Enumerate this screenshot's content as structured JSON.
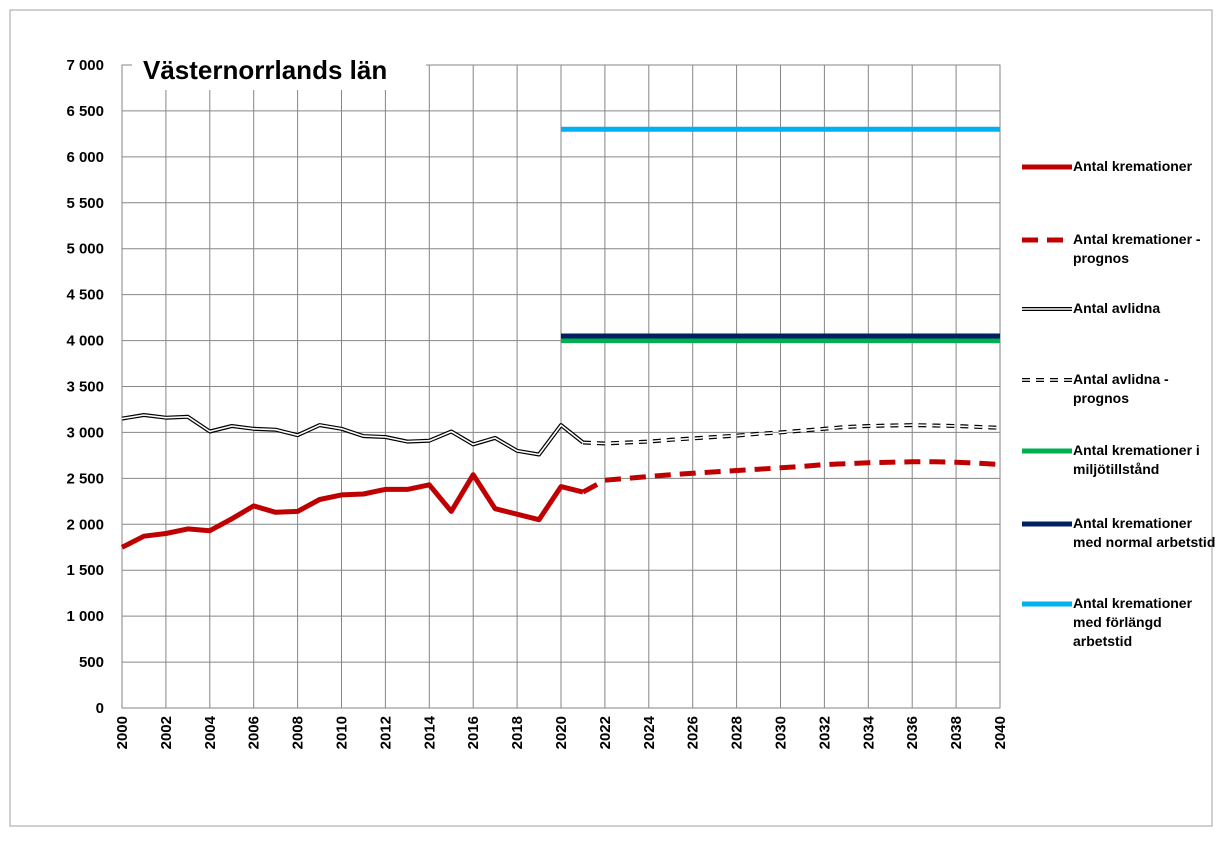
{
  "chart_data": {
    "type": "line",
    "title": "Västernorrlands län",
    "x": [
      2000,
      2001,
      2002,
      2003,
      2004,
      2005,
      2006,
      2007,
      2008,
      2009,
      2010,
      2011,
      2012,
      2013,
      2014,
      2015,
      2016,
      2017,
      2018,
      2019,
      2020,
      2021,
      2022,
      2023,
      2024,
      2025,
      2026,
      2027,
      2028,
      2029,
      2030,
      2031,
      2032,
      2033,
      2034,
      2035,
      2036,
      2037,
      2038,
      2039,
      2040
    ],
    "xlim": [
      2000,
      2040
    ],
    "xticks": [
      2000,
      2002,
      2004,
      2006,
      2008,
      2010,
      2012,
      2014,
      2016,
      2018,
      2020,
      2022,
      2024,
      2026,
      2028,
      2030,
      2032,
      2034,
      2036,
      2038,
      2040
    ],
    "ylim": [
      0,
      7000
    ],
    "yticks": [
      0,
      500,
      {
        "value": 1000,
        "label": "1 000"
      },
      {
        "value": 1500,
        "label": "1 500"
      },
      {
        "value": 2000,
        "label": "2 000"
      },
      {
        "value": 2500,
        "label": "2 500"
      },
      {
        "value": 3000,
        "label": "3 000"
      },
      {
        "value": 3500,
        "label": "3 500"
      },
      {
        "value": 4000,
        "label": "4 000"
      },
      {
        "value": 4500,
        "label": "4 500"
      },
      {
        "value": 5000,
        "label": "5 000"
      },
      {
        "value": 5500,
        "label": "5 500"
      },
      {
        "value": 6000,
        "label": "6 000"
      },
      {
        "value": 6500,
        "label": "6 500"
      },
      {
        "value": 7000,
        "label": "7 000"
      }
    ],
    "grid": true,
    "legend": "right",
    "series": [
      {
        "name": "Antal kremationer",
        "color": "#c00000",
        "width": 5,
        "style": "solid",
        "values": [
          1750,
          1870,
          1900,
          1950,
          1930,
          2060,
          2200,
          2130,
          2140,
          2270,
          2320,
          2330,
          2380,
          2380,
          2430,
          2140,
          2540,
          2170,
          2110,
          2050,
          2410,
          2350,
          null,
          null,
          null,
          null,
          null,
          null,
          null,
          null,
          null,
          null,
          null,
          null,
          null,
          null,
          null,
          null,
          null,
          null,
          null
        ]
      },
      {
        "name": "Antal kremationer - prognos",
        "color": "#c00000",
        "width": 5,
        "style": "dashed",
        "values": [
          null,
          null,
          null,
          null,
          null,
          null,
          null,
          null,
          null,
          null,
          null,
          null,
          null,
          null,
          null,
          null,
          null,
          null,
          null,
          null,
          null,
          2350,
          2480,
          2500,
          2520,
          2540,
          2555,
          2570,
          2585,
          2600,
          2615,
          2630,
          2650,
          2660,
          2670,
          2675,
          2680,
          2680,
          2675,
          2665,
          2650
        ]
      },
      {
        "name": "Antal avlidna",
        "color": "#000000",
        "width": 4,
        "style": "double",
        "values": [
          3150,
          3190,
          3160,
          3170,
          3010,
          3070,
          3040,
          3030,
          2970,
          3080,
          3040,
          2960,
          2950,
          2900,
          2910,
          3010,
          2870,
          2940,
          2800,
          2760,
          3080,
          2890,
          null,
          null,
          null,
          null,
          null,
          null,
          null,
          null,
          null,
          null,
          null,
          null,
          null,
          null,
          null,
          null,
          null,
          null,
          null
        ]
      },
      {
        "name": "Antal avlidna - prognos",
        "color": "#000000",
        "width": 4,
        "style": "double-dashed",
        "values": [
          null,
          null,
          null,
          null,
          null,
          null,
          null,
          null,
          null,
          null,
          null,
          null,
          null,
          null,
          null,
          null,
          null,
          null,
          null,
          null,
          null,
          2890,
          2880,
          2890,
          2900,
          2920,
          2935,
          2950,
          2965,
          2985,
          3000,
          3020,
          3040,
          3060,
          3070,
          3075,
          3080,
          3075,
          3070,
          3060,
          3050
        ]
      },
      {
        "name": "Antal kremationer i miljötillstånd",
        "color": "#00b050",
        "width": 5,
        "style": "solid",
        "values": [
          null,
          null,
          null,
          null,
          null,
          null,
          null,
          null,
          null,
          null,
          null,
          null,
          null,
          null,
          null,
          null,
          null,
          null,
          null,
          null,
          4000,
          4000,
          4000,
          4000,
          4000,
          4000,
          4000,
          4000,
          4000,
          4000,
          4000,
          4000,
          4000,
          4000,
          4000,
          4000,
          4000,
          4000,
          4000,
          4000,
          4000
        ]
      },
      {
        "name": "Antal kremationer med normal arbetstid",
        "color": "#002060",
        "width": 5,
        "style": "solid",
        "values": [
          null,
          null,
          null,
          null,
          null,
          null,
          null,
          null,
          null,
          null,
          null,
          null,
          null,
          null,
          null,
          null,
          null,
          null,
          null,
          null,
          4050,
          4050,
          4050,
          4050,
          4050,
          4050,
          4050,
          4050,
          4050,
          4050,
          4050,
          4050,
          4050,
          4050,
          4050,
          4050,
          4050,
          4050,
          4050,
          4050,
          4050
        ]
      },
      {
        "name": "Antal kremationer med förlängd arbetstid",
        "color": "#00b0f0",
        "width": 5,
        "style": "solid",
        "values": [
          null,
          null,
          null,
          null,
          null,
          null,
          null,
          null,
          null,
          null,
          null,
          null,
          null,
          null,
          null,
          null,
          null,
          null,
          null,
          null,
          6300,
          6300,
          6300,
          6300,
          6300,
          6300,
          6300,
          6300,
          6300,
          6300,
          6300,
          6300,
          6300,
          6300,
          6300,
          6300,
          6300,
          6300,
          6300,
          6300,
          6300
        ]
      }
    ]
  }
}
